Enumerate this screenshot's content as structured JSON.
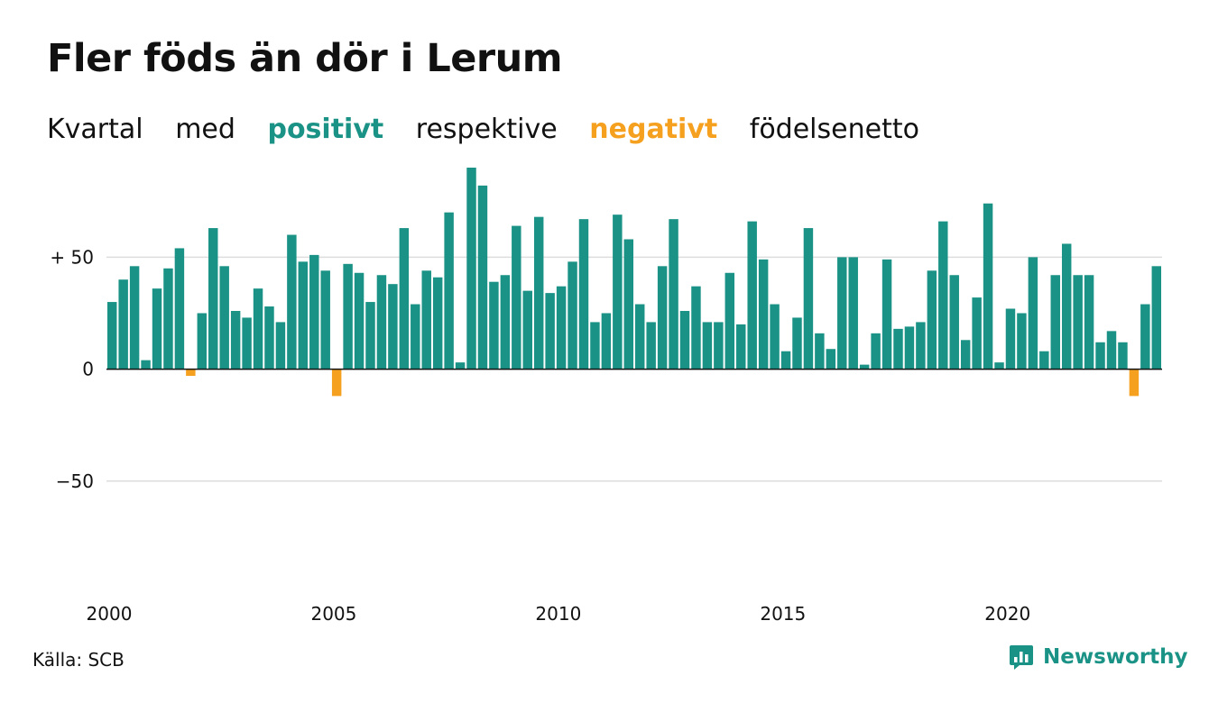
{
  "title": "Fler föds än dör i Lerum",
  "subtitle": {
    "w1": "Kvartal",
    "w2": "med",
    "positive": "positivt",
    "w3": "respektive",
    "negative": "negativt",
    "w4": "födelsenetto"
  },
  "source": "Källa: SCB",
  "brand": "Newsworthy",
  "colors": {
    "positive": "#1a9386",
    "negative": "#f5a01e"
  },
  "chart_data": {
    "type": "bar",
    "ylim": [
      -100,
      90
    ],
    "yticks": [
      50,
      0,
      -50
    ],
    "ytick_labels": [
      "+ 50",
      "0",
      "−50"
    ],
    "x_start_year": 2000,
    "xticks": [
      2000,
      2005,
      2010,
      2015,
      2020
    ],
    "xtick_labels": [
      "2000",
      "2005",
      "2010",
      "2015",
      "2020"
    ],
    "values": [
      30,
      40,
      46,
      4,
      36,
      45,
      54,
      -3,
      25,
      63,
      46,
      26,
      23,
      36,
      28,
      21,
      60,
      48,
      51,
      44,
      -12,
      47,
      43,
      30,
      42,
      38,
      63,
      29,
      44,
      41,
      70,
      3,
      90,
      82,
      39,
      42,
      64,
      35,
      68,
      34,
      37,
      48,
      67,
      21,
      25,
      69,
      58,
      29,
      21,
      46,
      67,
      26,
      37,
      21,
      21,
      43,
      20,
      66,
      49,
      29,
      8,
      23,
      63,
      16,
      9,
      50,
      50,
      2,
      16,
      49,
      18,
      19,
      21,
      44,
      66,
      42,
      13,
      32,
      74,
      3,
      27,
      25,
      50,
      8,
      42,
      56,
      42,
      42,
      12,
      17,
      12,
      -12,
      29,
      46
    ]
  }
}
